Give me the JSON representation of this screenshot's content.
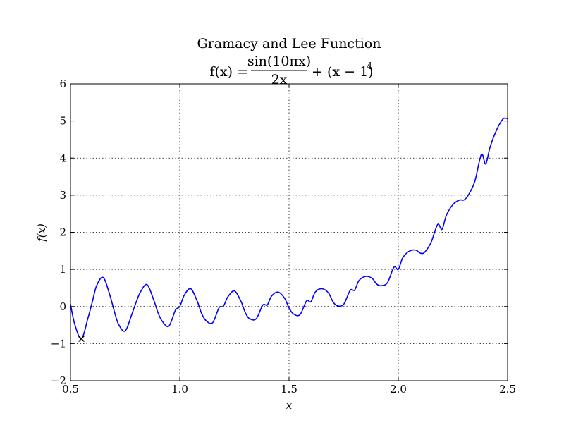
{
  "chart_data": {
    "type": "line",
    "title": "Gramacy and Lee Function",
    "formula": {
      "lhs": "f(x) =",
      "numerator": "sin(10πx)",
      "denominator": "2x",
      "rhs": "+ (x − 1)",
      "exponent": "4"
    },
    "xlabel": "x",
    "ylabel": "f(x)",
    "xlim": [
      0.5,
      2.5
    ],
    "ylim": [
      -2,
      6
    ],
    "xticks": [
      0.5,
      1.0,
      1.5,
      2.0,
      2.5
    ],
    "xtick_labels": [
      "0.5",
      "1.0",
      "1.5",
      "2.0",
      "2.5"
    ],
    "yticks": [
      -2,
      -1,
      0,
      1,
      2,
      3,
      4,
      5,
      6
    ],
    "ytick_labels": [
      "−2",
      "−1",
      "0",
      "1",
      "2",
      "3",
      "4",
      "5",
      "6"
    ],
    "grid": true,
    "series": [
      {
        "color": "#0000ff",
        "x": [
          0.5,
          0.52,
          0.55,
          0.58,
          0.6,
          0.62,
          0.65,
          0.68,
          0.7,
          0.72,
          0.75,
          0.78,
          0.8,
          0.82,
          0.85,
          0.88,
          0.9,
          0.92,
          0.95,
          0.98,
          1.0,
          1.02,
          1.05,
          1.08,
          1.1,
          1.12,
          1.15,
          1.18,
          1.2,
          1.22,
          1.25,
          1.28,
          1.3,
          1.32,
          1.35,
          1.38,
          1.4,
          1.42,
          1.45,
          1.48,
          1.5,
          1.52,
          1.55,
          1.58,
          1.6,
          1.62,
          1.65,
          1.68,
          1.7,
          1.72,
          1.75,
          1.78,
          1.8,
          1.82,
          1.85,
          1.88,
          1.9,
          1.92,
          1.95,
          1.98,
          2.0,
          2.02,
          2.05,
          2.08,
          2.1,
          2.12,
          2.15,
          2.18,
          2.2,
          2.22,
          2.25,
          2.28,
          2.3,
          2.32,
          2.35,
          2.38,
          2.4,
          2.42,
          2.45,
          2.48,
          2.5
        ],
        "y": [
          0.06,
          -0.49,
          -0.87,
          -0.31,
          0.13,
          0.57,
          0.78,
          0.31,
          -0.12,
          -0.48,
          -0.66,
          -0.22,
          0.11,
          0.39,
          0.59,
          0.19,
          -0.16,
          -0.4,
          -0.53,
          -0.1,
          0.0,
          0.3,
          0.48,
          0.14,
          -0.19,
          -0.38,
          -0.44,
          -0.03,
          0.01,
          0.26,
          0.42,
          0.14,
          -0.17,
          -0.33,
          -0.33,
          0.04,
          0.04,
          0.28,
          0.39,
          0.22,
          -0.04,
          -0.2,
          -0.22,
          0.15,
          0.13,
          0.39,
          0.48,
          0.37,
          0.14,
          0.02,
          0.06,
          0.44,
          0.44,
          0.7,
          0.81,
          0.76,
          0.61,
          0.56,
          0.64,
          1.06,
          1.0,
          1.31,
          1.49,
          1.52,
          1.44,
          1.46,
          1.73,
          2.21,
          2.08,
          2.46,
          2.75,
          2.87,
          2.87,
          3.0,
          3.37,
          4.1,
          3.84,
          4.3,
          4.76,
          5.06,
          5.06
        ]
      }
    ],
    "marker": {
      "x": 0.55,
      "y": -0.87,
      "symbol": "x",
      "color": "#000000"
    }
  }
}
